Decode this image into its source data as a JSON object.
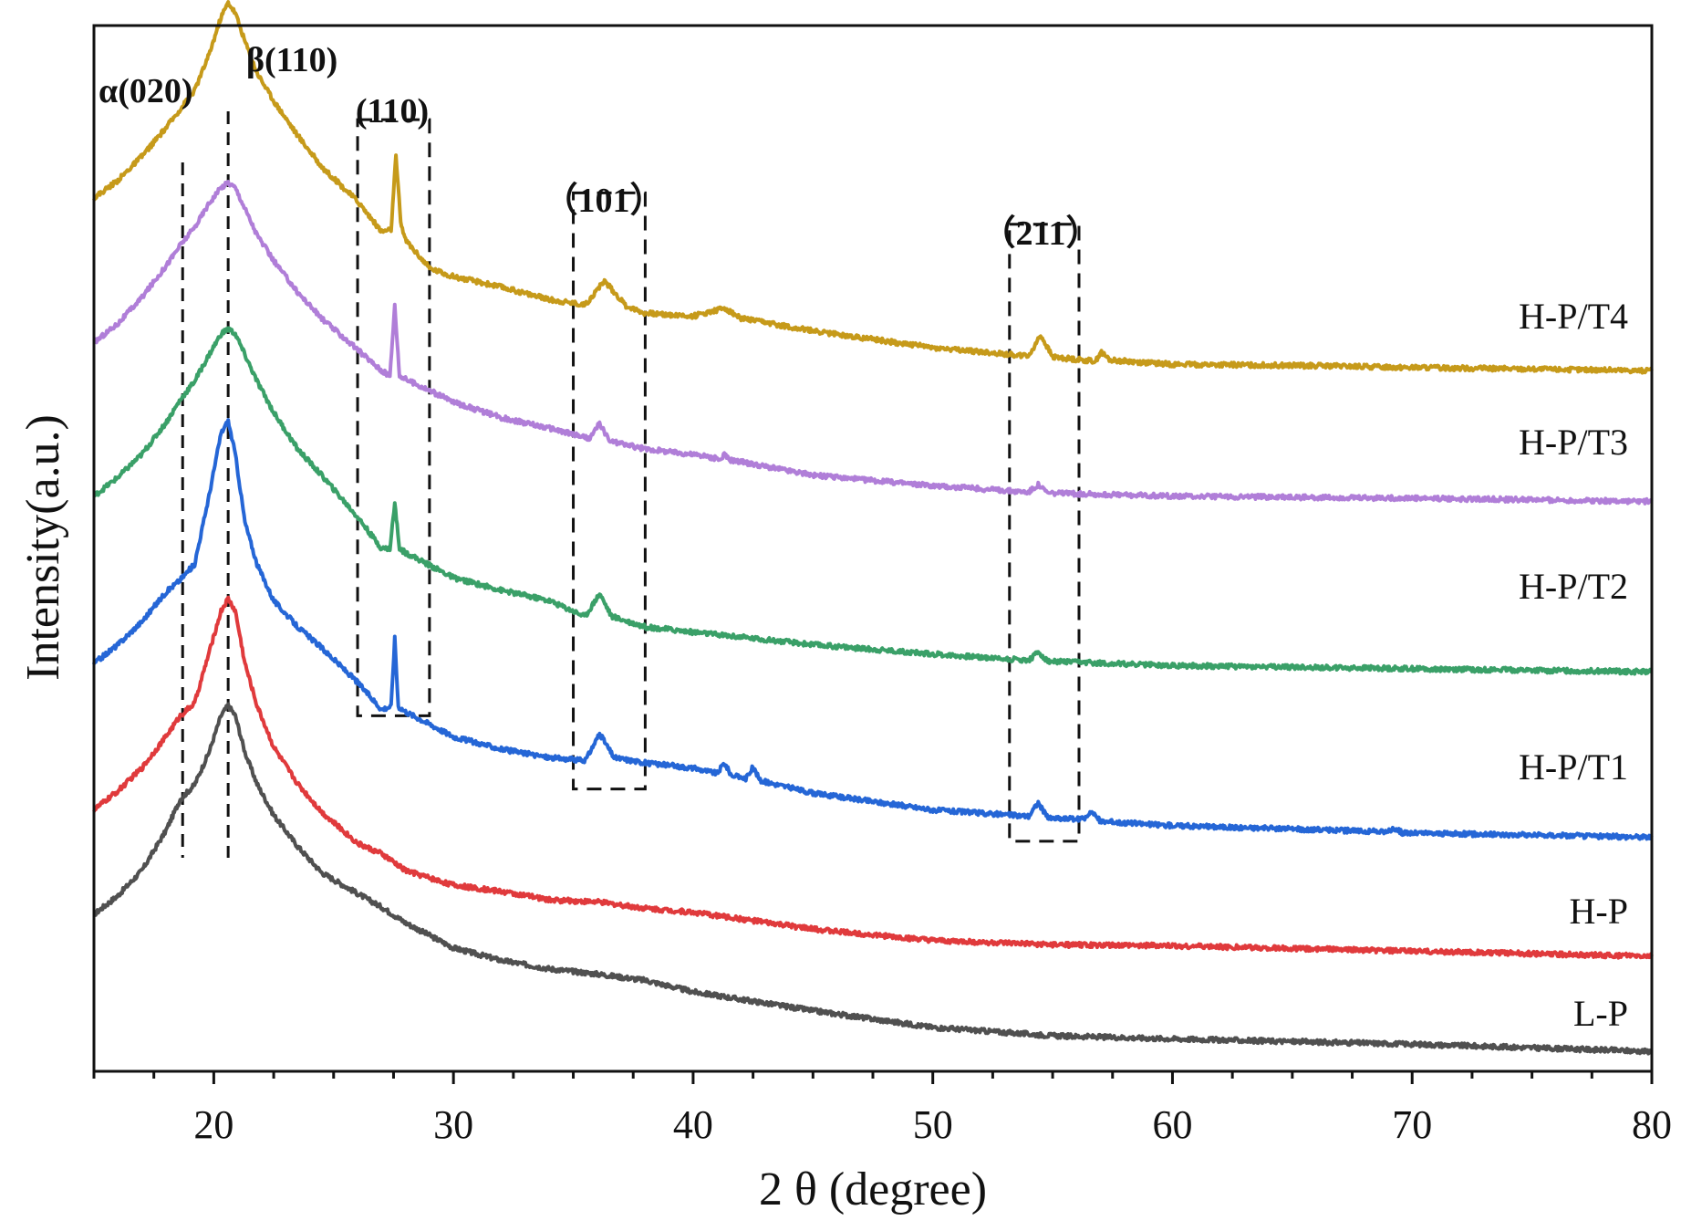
{
  "chart_data": {
    "type": "line",
    "title": "",
    "xlabel": "2 θ (degree)",
    "ylabel": "Intensity(a.u.)",
    "xlim": [
      15,
      80
    ],
    "xticks": [
      20,
      30,
      40,
      50,
      60,
      70,
      80
    ],
    "xtick_labels": [
      "20",
      "30",
      "40",
      "50",
      "60",
      "70",
      "80"
    ],
    "ylim": [
      0,
      10
    ],
    "y_ticks_shown": false,
    "grid": false,
    "series": [
      {
        "name": "L-P",
        "color": "#505050",
        "points": [
          [
            15,
            1.5
          ],
          [
            16,
            1.68
          ],
          [
            17,
            1.92
          ],
          [
            18,
            2.3
          ],
          [
            18.6,
            2.6
          ],
          [
            19.2,
            2.74
          ],
          [
            19.8,
            3.05
          ],
          [
            20.3,
            3.4
          ],
          [
            20.6,
            3.5
          ],
          [
            20.9,
            3.4
          ],
          [
            21.3,
            3.05
          ],
          [
            21.8,
            2.75
          ],
          [
            22.5,
            2.45
          ],
          [
            23.5,
            2.15
          ],
          [
            24.5,
            1.9
          ],
          [
            26,
            1.7
          ],
          [
            27,
            1.57
          ],
          [
            28,
            1.42
          ],
          [
            30,
            1.18
          ],
          [
            32,
            1.06
          ],
          [
            34,
            0.98
          ],
          [
            36,
            0.93
          ],
          [
            38,
            0.87
          ],
          [
            40,
            0.76
          ],
          [
            45,
            0.58
          ],
          [
            50,
            0.42
          ],
          [
            55,
            0.34
          ],
          [
            60,
            0.31
          ],
          [
            70,
            0.26
          ],
          [
            80,
            0.19
          ]
        ]
      },
      {
        "name": "H-P",
        "color": "#e03a3c",
        "points": [
          [
            15,
            2.5
          ],
          [
            16,
            2.68
          ],
          [
            17,
            2.9
          ],
          [
            18,
            3.2
          ],
          [
            18.6,
            3.4
          ],
          [
            19.2,
            3.52
          ],
          [
            19.8,
            4.0
          ],
          [
            20.3,
            4.4
          ],
          [
            20.6,
            4.52
          ],
          [
            20.9,
            4.4
          ],
          [
            21.3,
            3.9
          ],
          [
            21.8,
            3.5
          ],
          [
            22.5,
            3.1
          ],
          [
            23.5,
            2.75
          ],
          [
            24.5,
            2.48
          ],
          [
            26,
            2.18
          ],
          [
            27,
            2.08
          ],
          [
            28,
            1.92
          ],
          [
            30,
            1.78
          ],
          [
            32,
            1.72
          ],
          [
            34,
            1.64
          ],
          [
            36,
            1.62
          ],
          [
            38,
            1.56
          ],
          [
            40,
            1.52
          ],
          [
            45,
            1.36
          ],
          [
            50,
            1.25
          ],
          [
            55,
            1.21
          ],
          [
            60,
            1.2
          ],
          [
            70,
            1.15
          ],
          [
            80,
            1.1
          ]
        ]
      },
      {
        "name": "H-P/T1",
        "color": "#2566d6",
        "points": [
          [
            15,
            3.9
          ],
          [
            16,
            4.08
          ],
          [
            17,
            4.3
          ],
          [
            18,
            4.58
          ],
          [
            18.6,
            4.7
          ],
          [
            19.2,
            4.85
          ],
          [
            19.8,
            5.5
          ],
          [
            20.3,
            6.1
          ],
          [
            20.6,
            6.22
          ],
          [
            20.9,
            5.9
          ],
          [
            21.3,
            5.25
          ],
          [
            21.8,
            4.85
          ],
          [
            22.5,
            4.5
          ],
          [
            23.5,
            4.25
          ],
          [
            24.5,
            4.05
          ],
          [
            26,
            3.72
          ],
          [
            27,
            3.46
          ],
          [
            27.4,
            3.49
          ],
          [
            27.55,
            4.14
          ],
          [
            27.7,
            3.49
          ],
          [
            28,
            3.44
          ],
          [
            30,
            3.2
          ],
          [
            32,
            3.08
          ],
          [
            34,
            3.0
          ],
          [
            35.5,
            2.97
          ],
          [
            36.1,
            3.23
          ],
          [
            36.7,
            3.0
          ],
          [
            38,
            2.95
          ],
          [
            40,
            2.9
          ],
          [
            41,
            2.85
          ],
          [
            41.3,
            2.95
          ],
          [
            41.6,
            2.83
          ],
          [
            42.2,
            2.8
          ],
          [
            42.5,
            2.91
          ],
          [
            42.8,
            2.78
          ],
          [
            45,
            2.66
          ],
          [
            50,
            2.5
          ],
          [
            54,
            2.44
          ],
          [
            54.4,
            2.57
          ],
          [
            54.8,
            2.42
          ],
          [
            56.3,
            2.41
          ],
          [
            56.6,
            2.49
          ],
          [
            57,
            2.39
          ],
          [
            60,
            2.35
          ],
          [
            69,
            2.29
          ],
          [
            69.3,
            2.32
          ],
          [
            69.6,
            2.28
          ],
          [
            80,
            2.24
          ]
        ]
      },
      {
        "name": "H-P/T2",
        "color": "#3aa068",
        "points": [
          [
            15,
            5.5
          ],
          [
            16,
            5.68
          ],
          [
            17,
            5.9
          ],
          [
            18,
            6.2
          ],
          [
            18.6,
            6.42
          ],
          [
            19.2,
            6.6
          ],
          [
            19.8,
            6.85
          ],
          [
            20.3,
            7.05
          ],
          [
            20.6,
            7.1
          ],
          [
            20.9,
            7.05
          ],
          [
            21.3,
            6.85
          ],
          [
            21.8,
            6.6
          ],
          [
            22.5,
            6.3
          ],
          [
            23.5,
            5.95
          ],
          [
            24.5,
            5.7
          ],
          [
            26,
            5.3
          ],
          [
            27,
            5.0
          ],
          [
            27.35,
            5.0
          ],
          [
            27.55,
            5.43
          ],
          [
            27.75,
            5.0
          ],
          [
            28,
            4.96
          ],
          [
            30,
            4.72
          ],
          [
            32,
            4.6
          ],
          [
            34,
            4.5
          ],
          [
            35.5,
            4.35
          ],
          [
            36.1,
            4.57
          ],
          [
            36.6,
            4.35
          ],
          [
            38,
            4.25
          ],
          [
            40,
            4.2
          ],
          [
            45,
            4.08
          ],
          [
            50,
            3.99
          ],
          [
            54,
            3.93
          ],
          [
            54.4,
            4.01
          ],
          [
            54.8,
            3.92
          ],
          [
            60,
            3.88
          ],
          [
            70,
            3.85
          ],
          [
            80,
            3.82
          ]
        ]
      },
      {
        "name": "H-P/T3",
        "color": "#b07ed8",
        "points": [
          [
            15,
            6.97
          ],
          [
            16,
            7.15
          ],
          [
            17,
            7.4
          ],
          [
            18,
            7.7
          ],
          [
            18.6,
            7.9
          ],
          [
            19.2,
            8.07
          ],
          [
            19.8,
            8.3
          ],
          [
            20.3,
            8.45
          ],
          [
            20.6,
            8.5
          ],
          [
            20.9,
            8.45
          ],
          [
            21.3,
            8.25
          ],
          [
            21.8,
            8.0
          ],
          [
            22.5,
            7.75
          ],
          [
            23.5,
            7.45
          ],
          [
            24.5,
            7.2
          ],
          [
            26,
            6.9
          ],
          [
            27,
            6.7
          ],
          [
            27.35,
            6.65
          ],
          [
            27.55,
            7.32
          ],
          [
            27.75,
            6.65
          ],
          [
            28,
            6.62
          ],
          [
            30,
            6.4
          ],
          [
            32,
            6.25
          ],
          [
            34,
            6.15
          ],
          [
            35.7,
            6.05
          ],
          [
            36.1,
            6.2
          ],
          [
            36.5,
            6.03
          ],
          [
            38,
            5.95
          ],
          [
            40,
            5.9
          ],
          [
            41.2,
            5.85
          ],
          [
            41.3,
            5.9
          ],
          [
            41.5,
            5.85
          ],
          [
            45,
            5.7
          ],
          [
            50,
            5.6
          ],
          [
            54,
            5.54
          ],
          [
            54.4,
            5.61
          ],
          [
            54.8,
            5.53
          ],
          [
            60,
            5.5
          ],
          [
            70,
            5.48
          ],
          [
            80,
            5.45
          ]
        ]
      },
      {
        "name": "H-P/T4",
        "color": "#c69a1a",
        "points": [
          [
            15,
            8.35
          ],
          [
            16,
            8.52
          ],
          [
            17,
            8.75
          ],
          [
            18,
            9.02
          ],
          [
            18.6,
            9.2
          ],
          [
            19.2,
            9.38
          ],
          [
            19.8,
            9.72
          ],
          [
            20.3,
            10.08
          ],
          [
            20.6,
            10.22
          ],
          [
            20.9,
            10.12
          ],
          [
            21.3,
            9.85
          ],
          [
            21.8,
            9.55
          ],
          [
            22.5,
            9.28
          ],
          [
            23.5,
            8.95
          ],
          [
            24.5,
            8.65
          ],
          [
            26,
            8.32
          ],
          [
            27,
            8.03
          ],
          [
            27.4,
            8.05
          ],
          [
            27.6,
            8.75
          ],
          [
            27.8,
            8.12
          ],
          [
            28,
            7.95
          ],
          [
            29,
            7.68
          ],
          [
            30,
            7.6
          ],
          [
            32,
            7.5
          ],
          [
            34,
            7.38
          ],
          [
            35.5,
            7.33
          ],
          [
            36.3,
            7.56
          ],
          [
            37.2,
            7.32
          ],
          [
            38,
            7.25
          ],
          [
            40,
            7.22
          ],
          [
            41.3,
            7.3
          ],
          [
            42,
            7.2
          ],
          [
            45,
            7.08
          ],
          [
            50,
            6.92
          ],
          [
            54,
            6.84
          ],
          [
            54.5,
            7.04
          ],
          [
            55,
            6.83
          ],
          [
            56.8,
            6.79
          ],
          [
            57,
            6.88
          ],
          [
            57.4,
            6.8
          ],
          [
            60,
            6.76
          ],
          [
            65,
            6.75
          ],
          [
            70,
            6.73
          ],
          [
            80,
            6.7
          ]
        ]
      }
    ],
    "series_labels": [
      "L-P",
      "H-P",
      "H-P/T1",
      "H-P/T2",
      "H-P/T3",
      "H-P/T4"
    ],
    "reference_lines": [
      {
        "label": "α(020)",
        "x": 18.7
      },
      {
        "label": "β(110)",
        "x": 20.6
      }
    ],
    "highlight_regions": [
      {
        "label": "(110)",
        "x_range": [
          26,
          29
        ],
        "y_range": [
          3.4,
          9.1
        ]
      },
      {
        "label": "（101）",
        "x_range": [
          35,
          38
        ],
        "y_range": [
          2.7,
          8.4
        ]
      },
      {
        "label": "（211）",
        "x_range": [
          53.2,
          56.1
        ],
        "y_range": [
          2.2,
          8.1
        ]
      }
    ]
  }
}
